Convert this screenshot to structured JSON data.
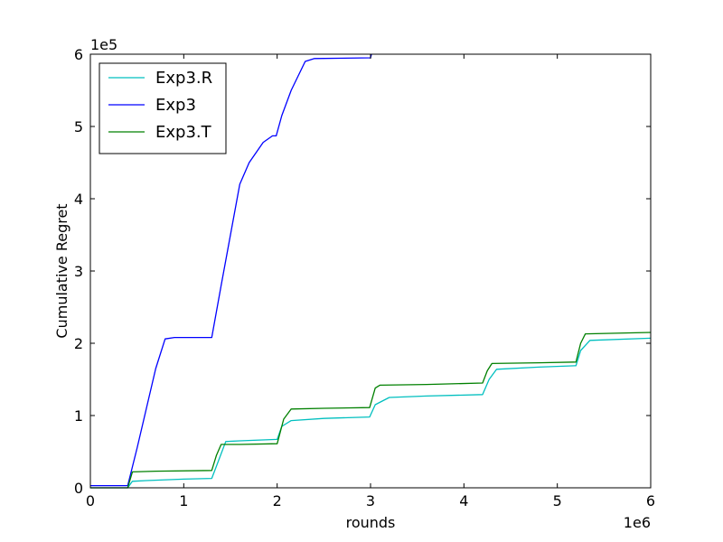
{
  "chart_data": {
    "type": "line",
    "title": "",
    "xlabel": "rounds",
    "ylabel": "Cumulative Regret",
    "x_multiplier": "1e6",
    "y_multiplier": "1e5",
    "xlim": [
      0,
      6
    ],
    "ylim": [
      0,
      6
    ],
    "x_ticks": [
      "0",
      "1",
      "2",
      "3",
      "4",
      "5",
      "6"
    ],
    "y_ticks": [
      "0",
      "1",
      "2",
      "3",
      "4",
      "5",
      "6"
    ],
    "grid": false,
    "legend_position": "top-left",
    "series": [
      {
        "name": "Exp3.R",
        "color": "#00bfbf",
        "points": [
          [
            0,
            0.0
          ],
          [
            0.4,
            0.0
          ],
          [
            0.45,
            0.09
          ],
          [
            0.6,
            0.1
          ],
          [
            1.0,
            0.12
          ],
          [
            1.3,
            0.13
          ],
          [
            1.35,
            0.3
          ],
          [
            1.45,
            0.64
          ],
          [
            1.6,
            0.65
          ],
          [
            2.0,
            0.67
          ],
          [
            2.05,
            0.85
          ],
          [
            2.15,
            0.93
          ],
          [
            2.5,
            0.96
          ],
          [
            2.99,
            0.98
          ],
          [
            3.05,
            1.15
          ],
          [
            3.2,
            1.25
          ],
          [
            3.6,
            1.27
          ],
          [
            4.2,
            1.29
          ],
          [
            4.27,
            1.5
          ],
          [
            4.35,
            1.64
          ],
          [
            4.8,
            1.67
          ],
          [
            5.2,
            1.69
          ],
          [
            5.25,
            1.9
          ],
          [
            5.35,
            2.04
          ],
          [
            6.0,
            2.07
          ]
        ]
      },
      {
        "name": "Exp3",
        "color": "#0000ff",
        "points": [
          [
            0,
            0.03
          ],
          [
            0.4,
            0.03
          ],
          [
            0.5,
            0.55
          ],
          [
            0.6,
            1.1
          ],
          [
            0.7,
            1.65
          ],
          [
            0.8,
            2.06
          ],
          [
            0.9,
            2.08
          ],
          [
            1.3,
            2.08
          ],
          [
            1.4,
            2.8
          ],
          [
            1.5,
            3.5
          ],
          [
            1.6,
            4.2
          ],
          [
            1.7,
            4.5
          ],
          [
            1.85,
            4.78
          ],
          [
            1.95,
            4.87
          ],
          [
            1.99,
            4.87
          ],
          [
            2.05,
            5.15
          ],
          [
            2.15,
            5.5
          ],
          [
            2.3,
            5.9
          ],
          [
            2.4,
            5.94
          ],
          [
            3.0,
            5.95
          ],
          [
            3.01,
            6.0
          ]
        ]
      },
      {
        "name": "Exp3.T",
        "color": "#008000",
        "points": [
          [
            0,
            0.0
          ],
          [
            0.4,
            0.0
          ],
          [
            0.45,
            0.22
          ],
          [
            0.7,
            0.23
          ],
          [
            1.3,
            0.24
          ],
          [
            1.35,
            0.45
          ],
          [
            1.4,
            0.6
          ],
          [
            1.6,
            0.6
          ],
          [
            2.0,
            0.61
          ],
          [
            2.07,
            0.95
          ],
          [
            2.15,
            1.09
          ],
          [
            2.5,
            1.1
          ],
          [
            2.99,
            1.11
          ],
          [
            3.05,
            1.38
          ],
          [
            3.1,
            1.42
          ],
          [
            3.6,
            1.43
          ],
          [
            4.2,
            1.45
          ],
          [
            4.25,
            1.62
          ],
          [
            4.3,
            1.72
          ],
          [
            4.8,
            1.73
          ],
          [
            5.2,
            1.74
          ],
          [
            5.25,
            2.0
          ],
          [
            5.3,
            2.13
          ],
          [
            6.0,
            2.15
          ]
        ]
      }
    ]
  }
}
